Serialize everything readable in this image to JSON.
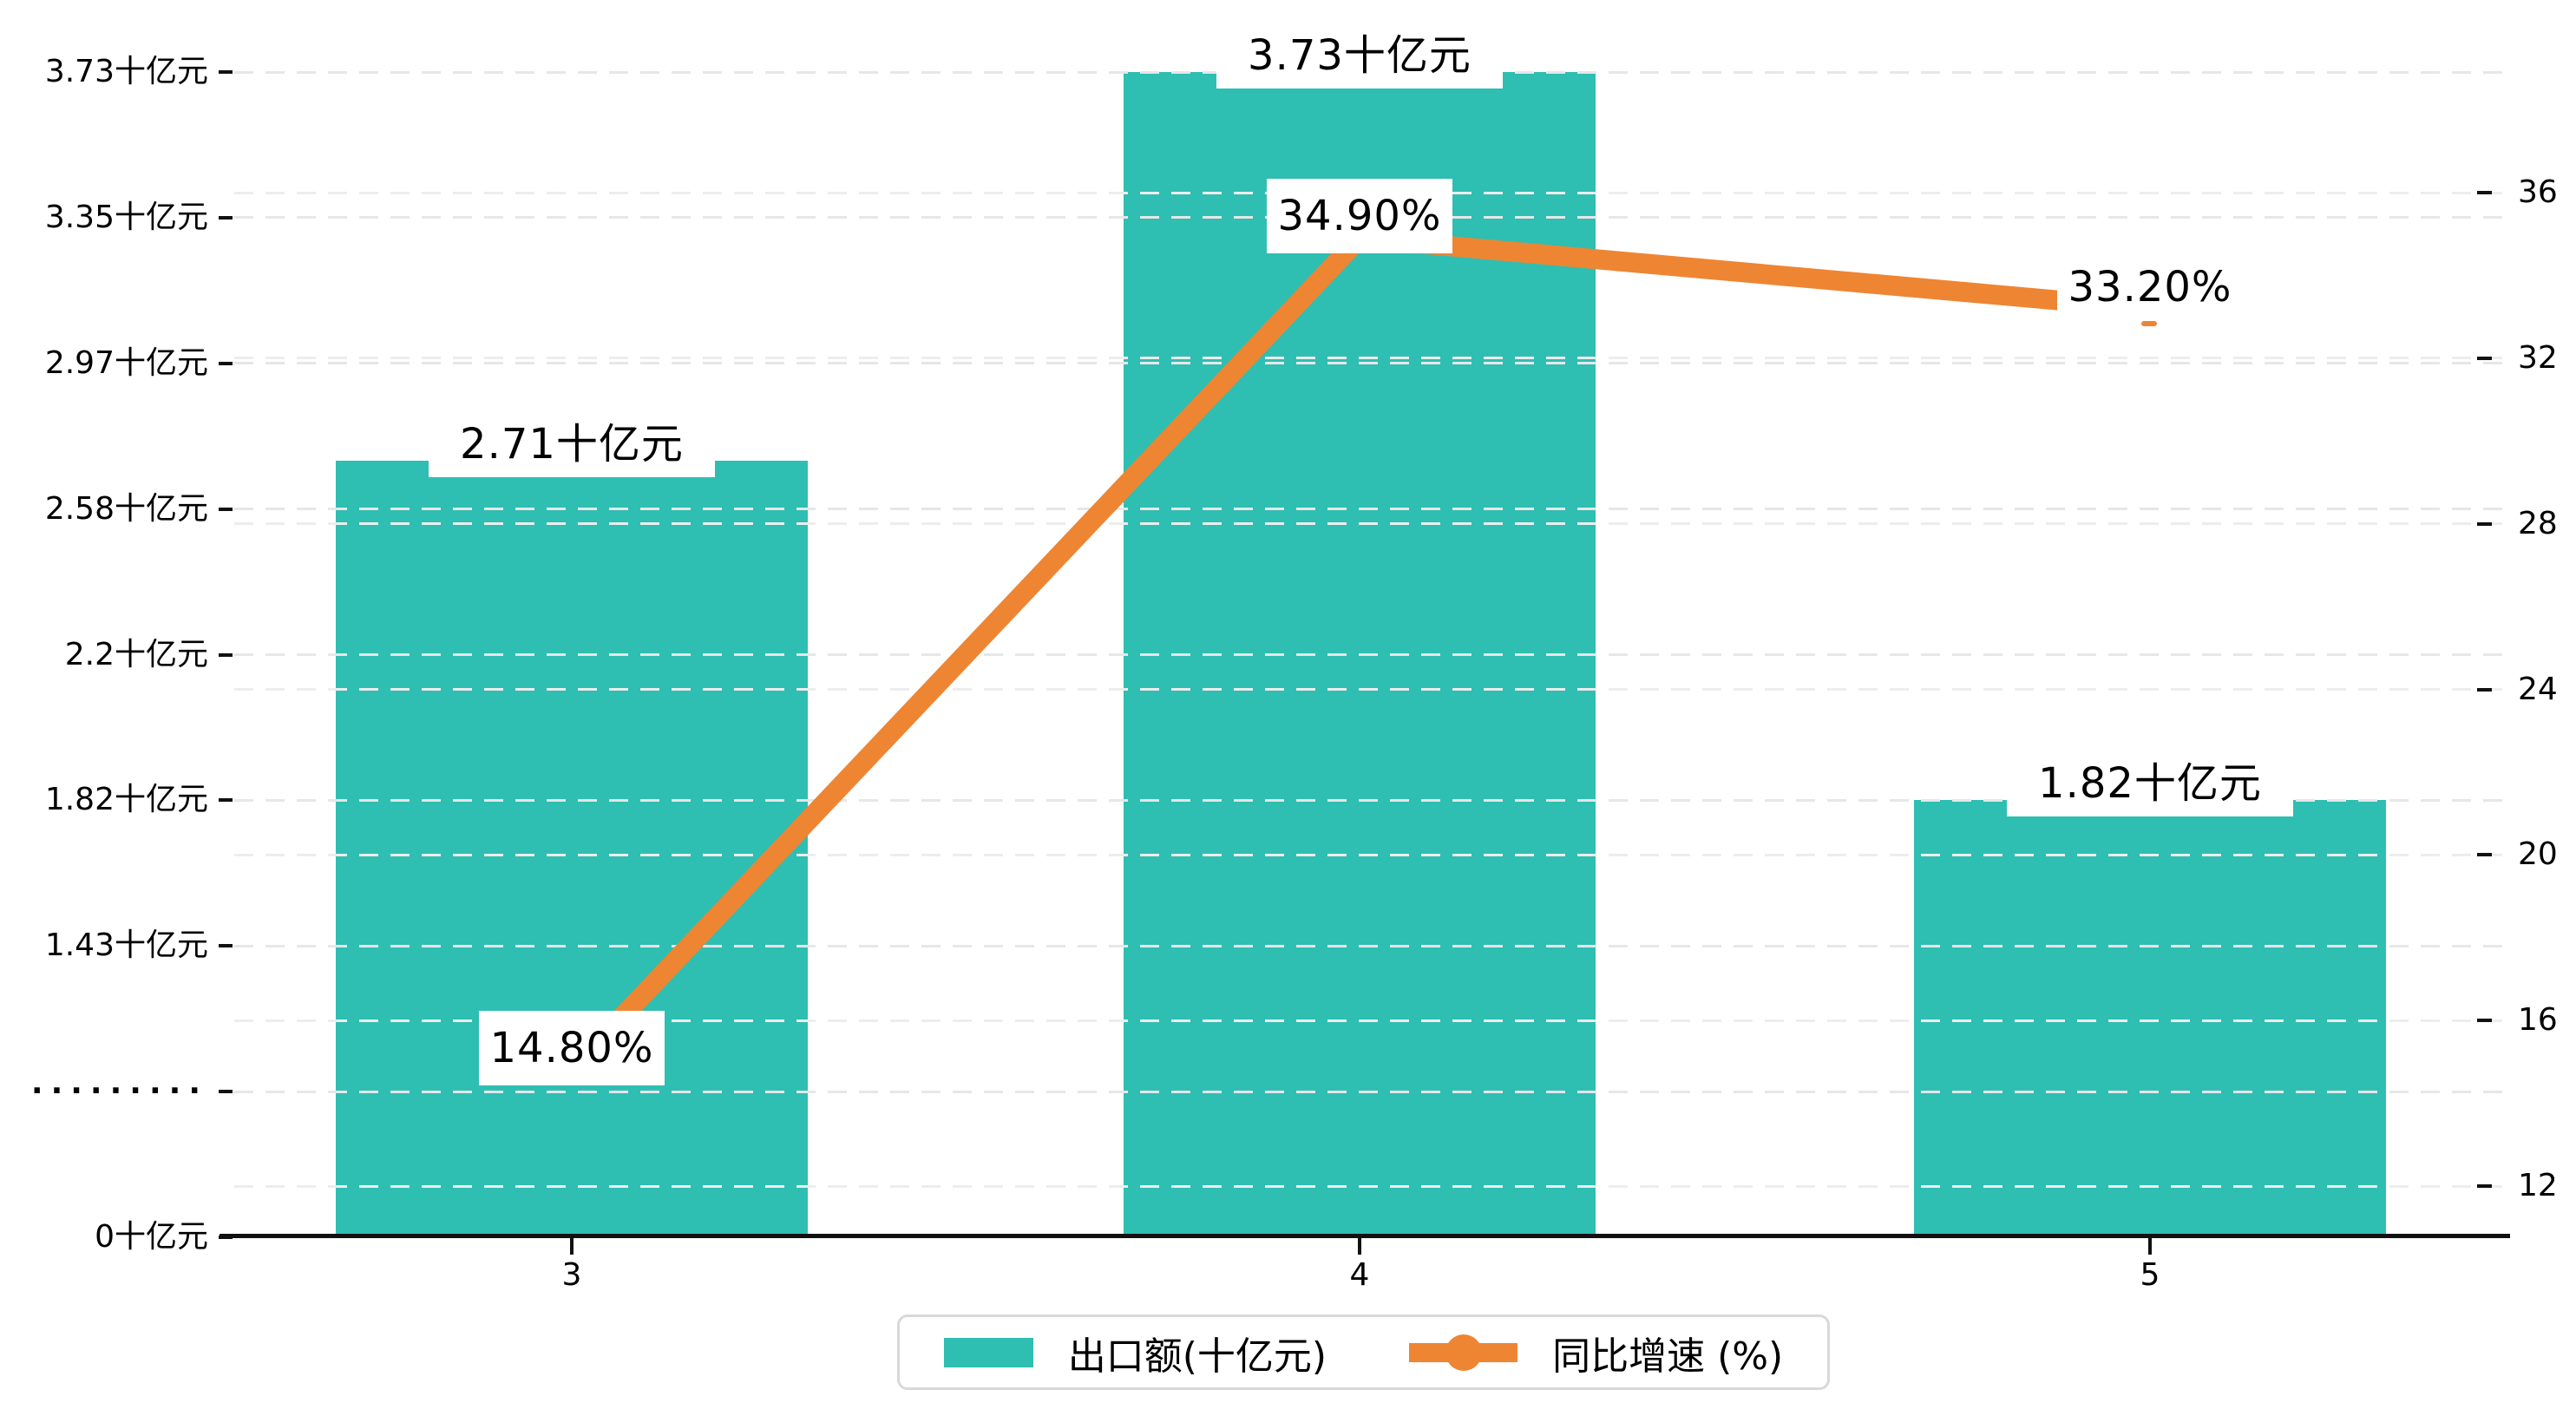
{
  "chart_data": {
    "type": "combo-bar-line",
    "categories": [
      "3",
      "4",
      "5"
    ],
    "series": [
      {
        "name": "出口额(十亿元)",
        "type": "bar",
        "axis": "left",
        "values": [
          2.71,
          3.73,
          1.82
        ],
        "labels": [
          "2.71十亿元",
          "3.73十亿元",
          "1.82十亿元"
        ],
        "color": "#2fbeb2"
      },
      {
        "name": "同比增速 (%)",
        "type": "line",
        "axis": "right",
        "values": [
          14.8,
          34.9,
          33.2
        ],
        "labels": [
          "14.80%",
          "34.90%",
          "33.20%"
        ],
        "color": "#ee8533"
      }
    ],
    "left_axis": {
      "tick_labels": [
        "3.73十亿元",
        "3.35十亿元",
        "2.97十亿元",
        "2.58十亿元",
        "2.2十亿元",
        "1.82十亿元",
        "1.43十亿元",
        "·········",
        "0十亿元"
      ],
      "tick_values": [
        3.73,
        3.35,
        2.97,
        2.58,
        2.2,
        1.82,
        1.43,
        null,
        0
      ]
    },
    "right_axis": {
      "tick_labels": [
        "36",
        "32",
        "28",
        "24",
        "20",
        "16",
        "12"
      ],
      "tick_values": [
        36,
        32,
        28,
        24,
        20,
        16,
        12
      ]
    },
    "xlabel": "",
    "ylabel": "",
    "title": "",
    "grid": true,
    "legend_position": "bottom",
    "legend": [
      {
        "label": "出口额(十亿元)",
        "marker": "square",
        "color": "#2fbeb2"
      },
      {
        "label": "同比增速 (%)",
        "marker": "line-circle",
        "color": "#ee8533"
      }
    ]
  },
  "colors": {
    "bar": "#2fbeb2",
    "line": "#ee8533",
    "grid_left": "#e7e7e7",
    "grid_right": "#ededed",
    "axis": "#111111",
    "text": "#000000",
    "label_bg": "#ffffff",
    "legend_border": "#d9d9d9"
  }
}
